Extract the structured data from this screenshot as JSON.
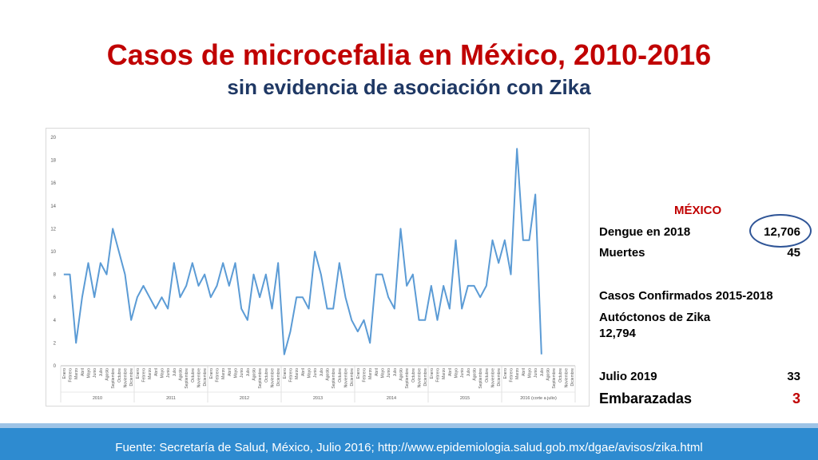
{
  "title": "Casos de microcefalia en México, 2010-2016",
  "subtitle": "sin evidencia de asociación con Zika",
  "chart_data": {
    "type": "line",
    "color": "#5b9bd5",
    "ylim": [
      0,
      20
    ],
    "yticks": [
      "0",
      "2",
      "4",
      "6",
      "8",
      "10",
      "12",
      "14",
      "16",
      "18",
      "20"
    ],
    "months": [
      "Enero",
      "Febrero",
      "Marzo",
      "Abril",
      "Mayo",
      "Junio",
      "Julio",
      "Agosto",
      "Septiembre",
      "Octubre",
      "Noviembre",
      "Diciembre"
    ],
    "years": [
      "2010",
      "2011",
      "2012",
      "2013",
      "2014",
      "2015",
      "2016 (corte a julio)"
    ],
    "values": [
      8,
      8,
      2,
      6,
      9,
      6,
      9,
      8,
      12,
      10,
      8,
      4,
      6,
      7,
      6,
      5,
      6,
      5,
      9,
      6,
      7,
      9,
      7,
      8,
      6,
      7,
      9,
      7,
      9,
      5,
      4,
      8,
      6,
      8,
      5,
      9,
      1,
      3,
      6,
      6,
      5,
      10,
      8,
      5,
      5,
      9,
      6,
      4,
      3,
      4,
      2,
      8,
      8,
      6,
      5,
      12,
      7,
      8,
      4,
      4,
      7,
      4,
      7,
      5,
      11,
      5,
      7,
      7,
      6,
      7,
      11,
      9,
      11,
      8,
      19,
      11,
      11,
      15,
      1
    ]
  },
  "panel": {
    "heading": "MÉXICO",
    "dengue_label": "Dengue en 2018",
    "dengue_value": "12,706",
    "muertes_label": "Muertes",
    "muertes_value": "45",
    "casos_label": "Casos Confirmados 2015-2018",
    "autoctonos_label": "Autóctonos de Zika",
    "autoctonos_value": "12,794",
    "julio_label": "Julio 2019",
    "julio_value": "33",
    "embarazadas_label": "Embarazadas",
    "embarazadas_value": "3",
    "accent_color": "#c00000",
    "circle_color": "#2f5597"
  },
  "footer": {
    "text": "Fuente: Secretaría de Salud, México, Julio 2016; http://www.epidemiologia.salud.gob.mx/dgae/avisos/zika.html",
    "bg_color": "#2e8bd0"
  }
}
